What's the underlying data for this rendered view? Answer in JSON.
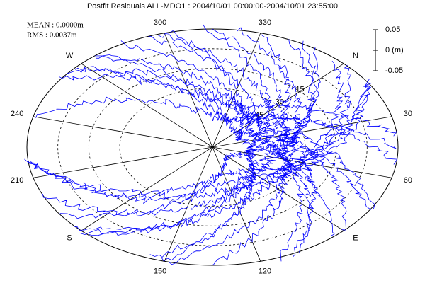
{
  "chart_data": {
    "type": "skyplot",
    "title": "Postfit Residuals ALL-MDO1 : 2004/10/01 00:00:00-2004/10/01 23:55:00",
    "mean": "MEAN : 0.0000m",
    "rms": "RMS : 0.0037m",
    "azimuth_labels": [
      {
        "value": 0,
        "label": "N"
      },
      {
        "value": 30,
        "label": "30"
      },
      {
        "value": 60,
        "label": "60"
      },
      {
        "value": 90,
        "label": "E"
      },
      {
        "value": 120,
        "label": "120"
      },
      {
        "value": 150,
        "label": "150"
      },
      {
        "value": 180,
        "label": "S"
      },
      {
        "value": 210,
        "label": "210"
      },
      {
        "value": 240,
        "label": "240"
      },
      {
        "value": 270,
        "label": "W"
      },
      {
        "value": 300,
        "label": "300"
      },
      {
        "value": 330,
        "label": "330"
      }
    ],
    "elevation_ticks": [
      15,
      30,
      45
    ],
    "scale_ylim": [
      -0.05,
      0.05
    ],
    "scale_ticks": [
      0.05,
      {
        "value": 0,
        "label": "0 (m)"
      },
      -0.05
    ],
    "color": "#0000ff"
  }
}
